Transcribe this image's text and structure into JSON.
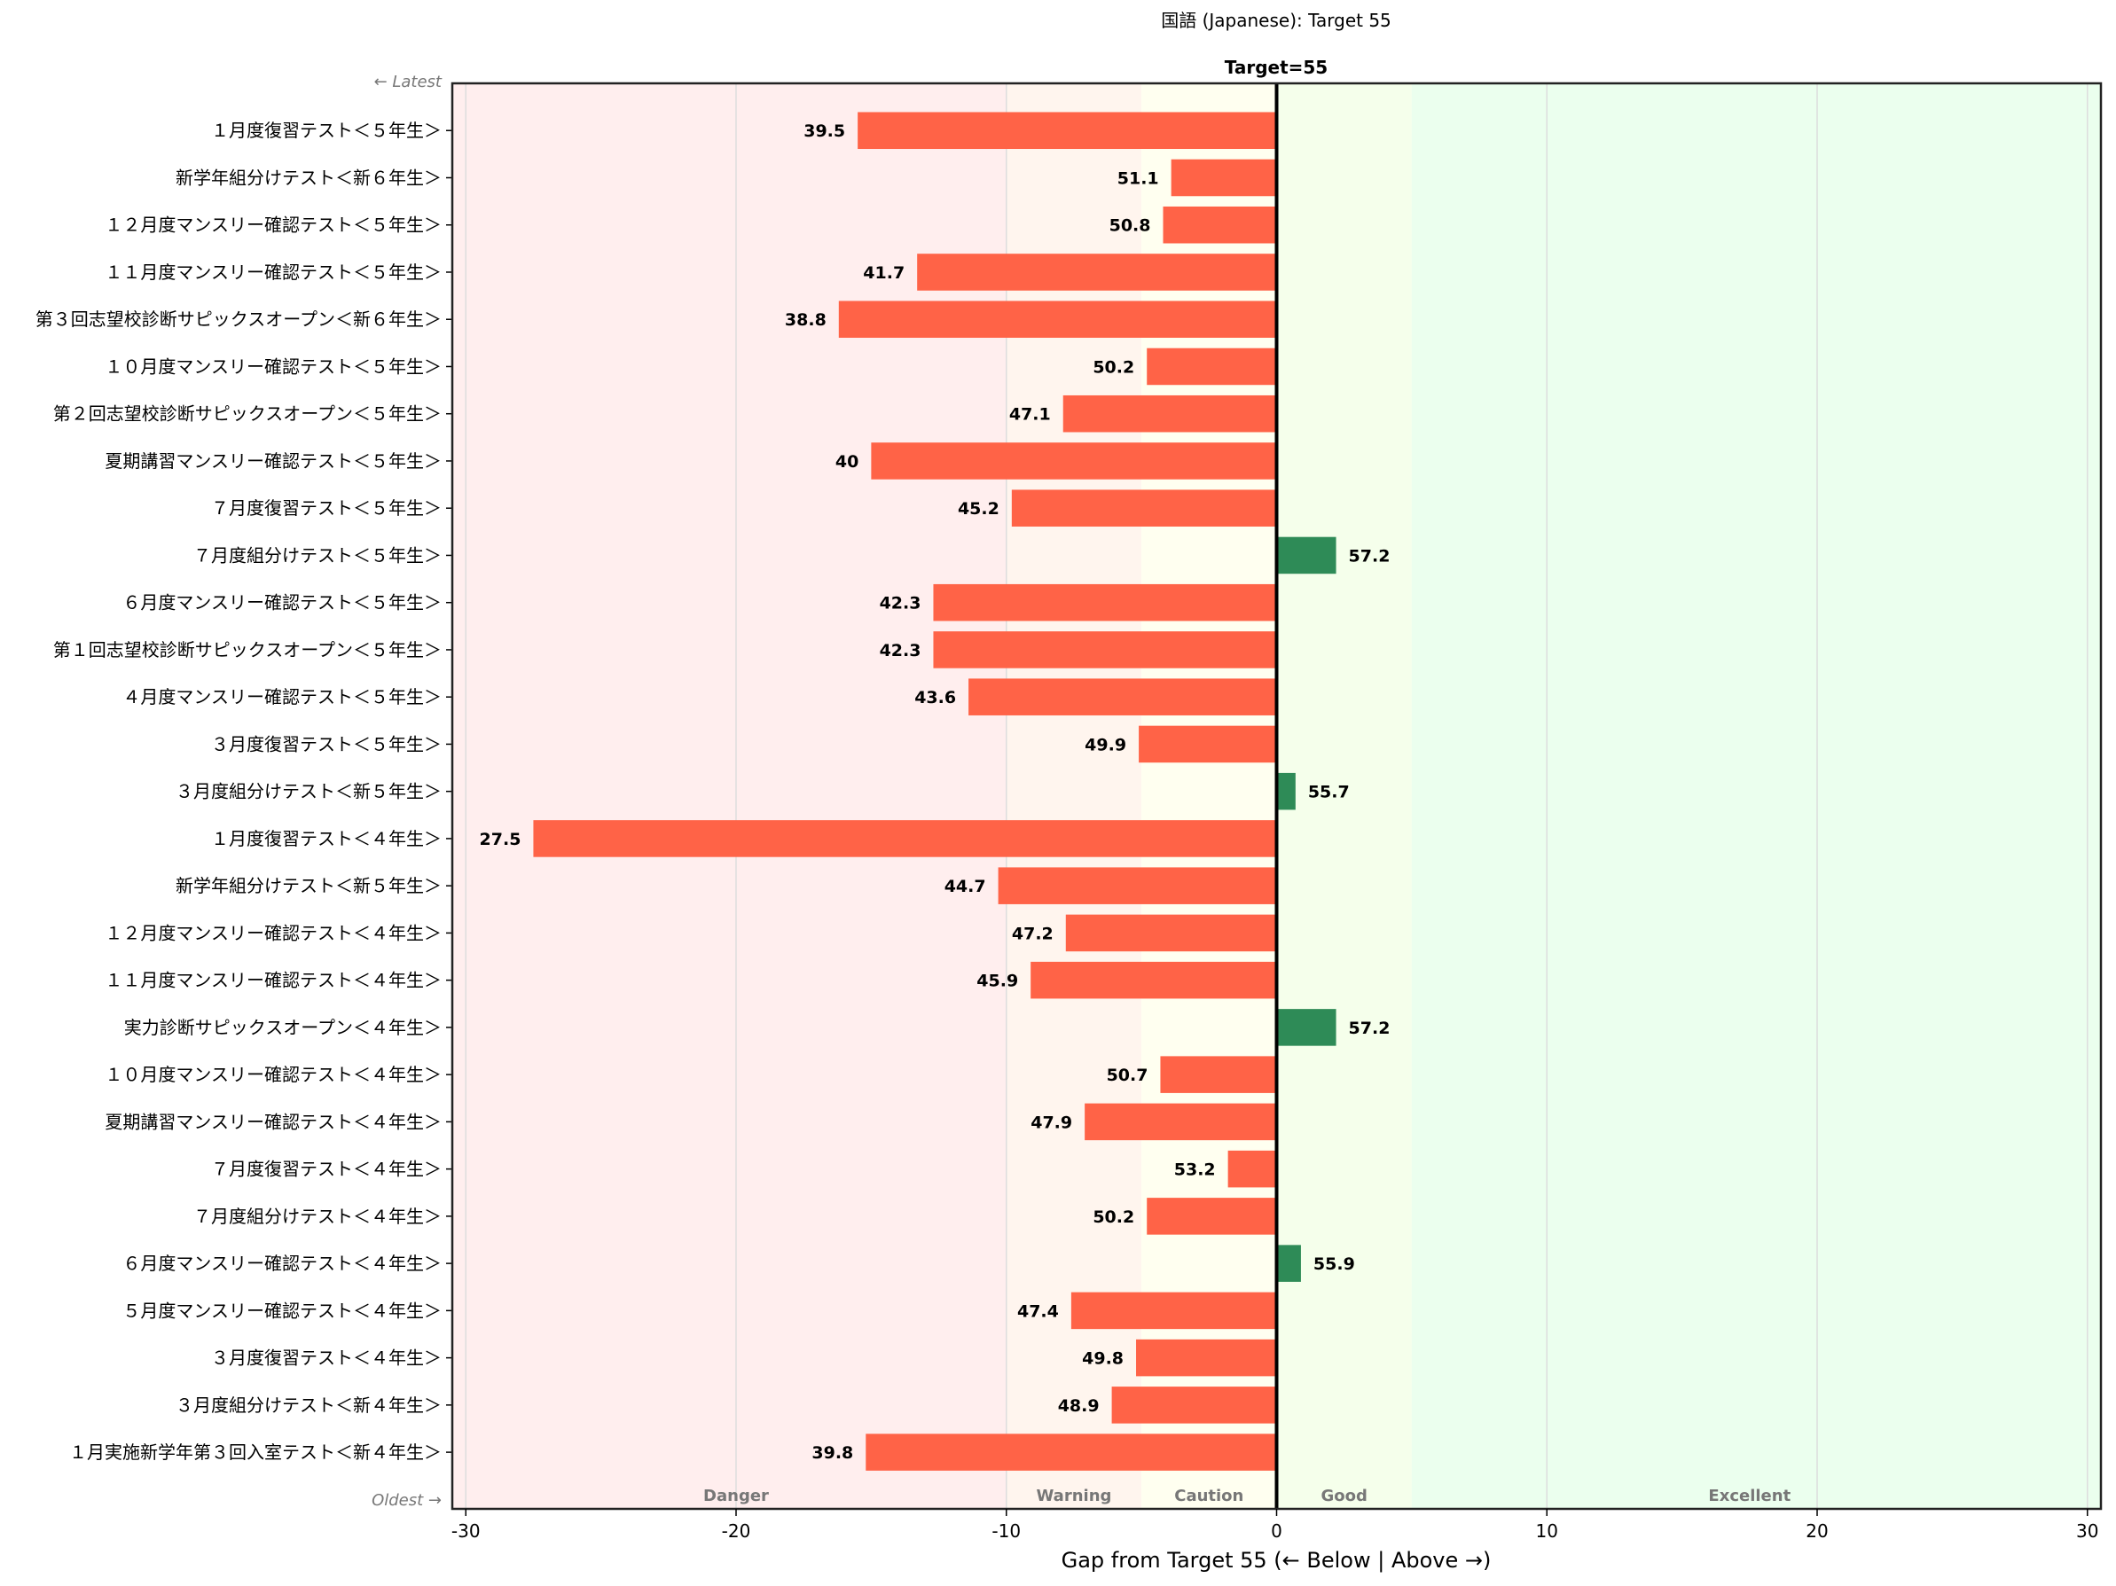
{
  "chart_data": {
    "type": "bar",
    "orientation": "horizontal",
    "title": "国語 (Japanese): Target 55",
    "target": 55,
    "target_label": "Target=55",
    "xlabel": "Gap from Target 55  (← Below | Above →)",
    "ylabel": "",
    "xlim": [
      -30.5,
      30.5
    ],
    "xticks": [
      -30,
      -20,
      -10,
      0,
      10,
      20,
      30
    ],
    "grid": "vertical",
    "order_labels": {
      "top": "← Latest",
      "bottom": "Oldest →"
    },
    "zones": [
      {
        "name": "Danger",
        "from": -30.5,
        "to": -10,
        "color": "#ffeeee",
        "label_at": -20
      },
      {
        "name": "Warning",
        "from": -10,
        "to": -5,
        "color": "#fff5ee",
        "label_at": -7.5
      },
      {
        "name": "Caution",
        "from": -5,
        "to": 0,
        "color": "#fffff0",
        "label_at": -2.5
      },
      {
        "name": "Good",
        "from": 0,
        "to": 5,
        "color": "#f5ffeb",
        "label_at": 2.5
      },
      {
        "name": "Excellent",
        "from": 5,
        "to": 30.5,
        "color": "#ebffee",
        "label_at": 17.5
      }
    ],
    "colors": {
      "below": "#ff6347",
      "above": "#2e8b57"
    },
    "categories": [
      "１月度復習テスト＜５年生＞",
      "新学年組分けテスト＜新６年生＞",
      "１２月度マンスリー確認テスト＜５年生＞",
      "１１月度マンスリー確認テスト＜５年生＞",
      "第３回志望校診断サピックスオープン＜新６年生＞",
      "１０月度マンスリー確認テスト＜５年生＞",
      "第２回志望校診断サピックスオープン＜５年生＞",
      "夏期講習マンスリー確認テスト＜５年生＞",
      "７月度復習テスト＜５年生＞",
      "７月度組分けテスト＜５年生＞",
      "６月度マンスリー確認テスト＜５年生＞",
      "第１回志望校診断サピックスオープン＜５年生＞",
      "４月度マンスリー確認テスト＜５年生＞",
      "３月度復習テスト＜５年生＞",
      "３月度組分けテスト＜新５年生＞",
      "１月度復習テスト＜４年生＞",
      "新学年組分けテスト＜新５年生＞",
      "１２月度マンスリー確認テスト＜４年生＞",
      "１１月度マンスリー確認テスト＜４年生＞",
      "実力診断サピックスオープン＜４年生＞",
      "１０月度マンスリー確認テスト＜４年生＞",
      "夏期講習マンスリー確認テスト＜４年生＞",
      "７月度復習テスト＜４年生＞",
      "７月度組分けテスト＜４年生＞",
      "６月度マンスリー確認テスト＜４年生＞",
      "５月度マンスリー確認テスト＜４年生＞",
      "３月度復習テスト＜４年生＞",
      "３月度組分けテスト＜新４年生＞",
      "１月実施新学年第３回入室テスト＜新４年生＞"
    ],
    "values": [
      39.5,
      51.1,
      50.8,
      41.7,
      38.8,
      50.2,
      47.1,
      40,
      45.2,
      57.2,
      42.3,
      42.3,
      43.6,
      49.9,
      55.7,
      27.5,
      44.7,
      47.2,
      45.9,
      57.2,
      50.7,
      47.9,
      53.2,
      50.2,
      55.9,
      47.4,
      49.8,
      48.9,
      39.8
    ],
    "value_labels": [
      "39.5",
      "51.1",
      "50.8",
      "41.7",
      "38.8",
      "50.2",
      "47.1",
      "40",
      "45.2",
      "57.2",
      "42.3",
      "42.3",
      "43.6",
      "49.9",
      "55.7",
      "27.5",
      "44.7",
      "47.2",
      "45.9",
      "57.2",
      "50.7",
      "47.9",
      "53.2",
      "50.2",
      "55.9",
      "47.4",
      "49.8",
      "48.9",
      "39.8"
    ]
  }
}
